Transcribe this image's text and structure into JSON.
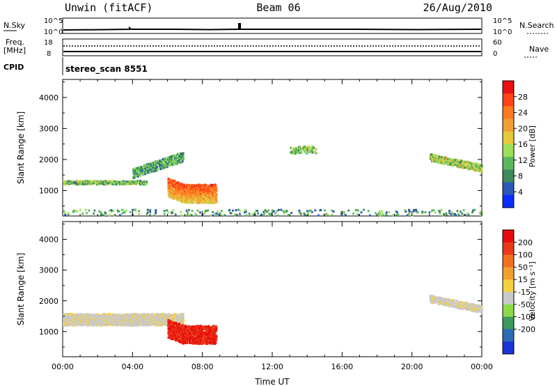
{
  "header": {
    "station": "Unwin (fitACF)",
    "beam": "Beam 06",
    "date": "26/Aug/2010"
  },
  "noise_panel": {
    "left_label": "N.Sky",
    "right_label": "N.Search",
    "left_ticks": [
      "10^5",
      "10^0"
    ],
    "right_ticks": [
      "10^5",
      "10^0"
    ]
  },
  "freq_panel": {
    "left_label_1": "Freq.",
    "left_label_2": "[MHz]",
    "right_label": "Nave",
    "left_ticks": [
      "18",
      "8"
    ],
    "right_ticks": [
      "60",
      "0"
    ]
  },
  "cpid_panel": {
    "label": "CPID",
    "value": "stereo_scan 8551"
  },
  "chart_data": [
    {
      "type": "heatmap",
      "parameter": "power",
      "ylabel": "Slant Range [km]",
      "yticks": [
        1000,
        2000,
        3000,
        4000
      ],
      "ylim": [
        180,
        4580
      ],
      "colorbar_label": "Power [dB]",
      "colorbar_ticks": [
        "4",
        "8",
        "12",
        "16",
        "20",
        "24",
        "28"
      ],
      "colorbar_colors": [
        "#0a2eff",
        "#2c58b8",
        "#3d8a5c",
        "#59b85e",
        "#9be05a",
        "#e6c93a",
        "#f0a032",
        "#ff7a1e",
        "#ff4418",
        "#e81010"
      ],
      "regions": [
        {
          "name": "early band",
          "x": [
            0.0,
            4.8
          ],
          "range": [
            1200,
            1550
          ],
          "value": 12
        },
        {
          "name": "rising band",
          "x": [
            4.0,
            6.9
          ],
          "range": [
            1400,
            2300
          ],
          "value": 10
        },
        {
          "name": "intense patch",
          "x": [
            6.0,
            8.8
          ],
          "range": [
            600,
            1700
          ],
          "value": 24
        },
        {
          "name": "late band",
          "x": [
            21.0,
            24.0
          ],
          "range": [
            1600,
            2300
          ],
          "value": 14
        },
        {
          "name": "sparse echoes",
          "x": [
            13.0,
            14.5
          ],
          "range": [
            2200,
            2900
          ],
          "value": 12
        },
        {
          "name": "near-range clutter",
          "x": [
            0.0,
            24.0
          ],
          "range": [
            200,
            400
          ],
          "value": 10
        }
      ]
    },
    {
      "type": "heatmap",
      "parameter": "velocity",
      "ylabel": "Slant Range [km]",
      "yticks": [
        1000,
        2000,
        3000,
        4000
      ],
      "ylim": [
        180,
        4580
      ],
      "xlabel": "Time UT",
      "xticks": [
        "00:00",
        "04:00",
        "08:00",
        "12:00",
        "16:00",
        "20:00",
        "00:00"
      ],
      "colorbar_label": "Velocity [m s⁻¹]",
      "colorbar_ticks": [
        "200",
        "100",
        "50",
        "15",
        "-15",
        "-50",
        "-100",
        "-200"
      ],
      "colorbar_colors": [
        "#1c33d6",
        "#2c6cb5",
        "#3c9a5a",
        "#8ed94a",
        "#c9c9c9",
        "#f5d040",
        "#f2a030",
        "#f07020",
        "#e83a1a",
        "#e80c0c"
      ],
      "regions": [
        {
          "name": "ground scatter band",
          "x": [
            0.0,
            6.9
          ],
          "range": [
            1200,
            2300
          ],
          "value": 0
        },
        {
          "name": "flow patch",
          "x": [
            6.0,
            8.8
          ],
          "range": [
            600,
            1700
          ],
          "value": -120
        },
        {
          "name": "late ground scatter",
          "x": [
            21.0,
            24.0
          ],
          "range": [
            1600,
            2300
          ],
          "value": 0
        }
      ]
    }
  ]
}
